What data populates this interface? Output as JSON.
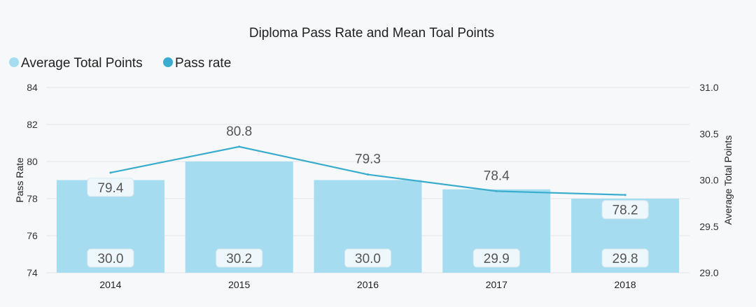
{
  "chart_data": {
    "type": "bar+line",
    "title": "Diploma Pass Rate and Mean Toal Points",
    "categories": [
      "2014",
      "2015",
      "2016",
      "2017",
      "2018"
    ],
    "series": [
      {
        "name": "Average Total Points",
        "type": "bar",
        "axis": "right",
        "values": [
          30.0,
          30.2,
          30.0,
          29.9,
          29.8
        ],
        "labels": [
          "30.0",
          "30.2",
          "30.0",
          "29.9",
          "29.8"
        ],
        "color": "#a6dcef"
      },
      {
        "name": "Pass rate",
        "type": "line",
        "axis": "left",
        "values": [
          79.4,
          80.8,
          79.3,
          78.4,
          78.2
        ],
        "labels": [
          "79.4",
          "80.8",
          "79.3",
          "78.4",
          "78.2"
        ],
        "color": "#3aaccd"
      }
    ],
    "y_left": {
      "label": "Pass Rate",
      "range": [
        74,
        84
      ],
      "ticks": [
        "74",
        "76",
        "78",
        "80",
        "82",
        "84"
      ],
      "tick_values": [
        74,
        76,
        78,
        80,
        82,
        84
      ]
    },
    "y_right": {
      "label": "Average Total Points",
      "range": [
        29.0,
        31.0
      ],
      "ticks": [
        "29.0",
        "29.5",
        "30.0",
        "30.5",
        "31.0"
      ],
      "tick_values": [
        29.0,
        29.5,
        30.0,
        30.5,
        31.0
      ]
    },
    "legend_position": "top-left",
    "grid": true
  }
}
